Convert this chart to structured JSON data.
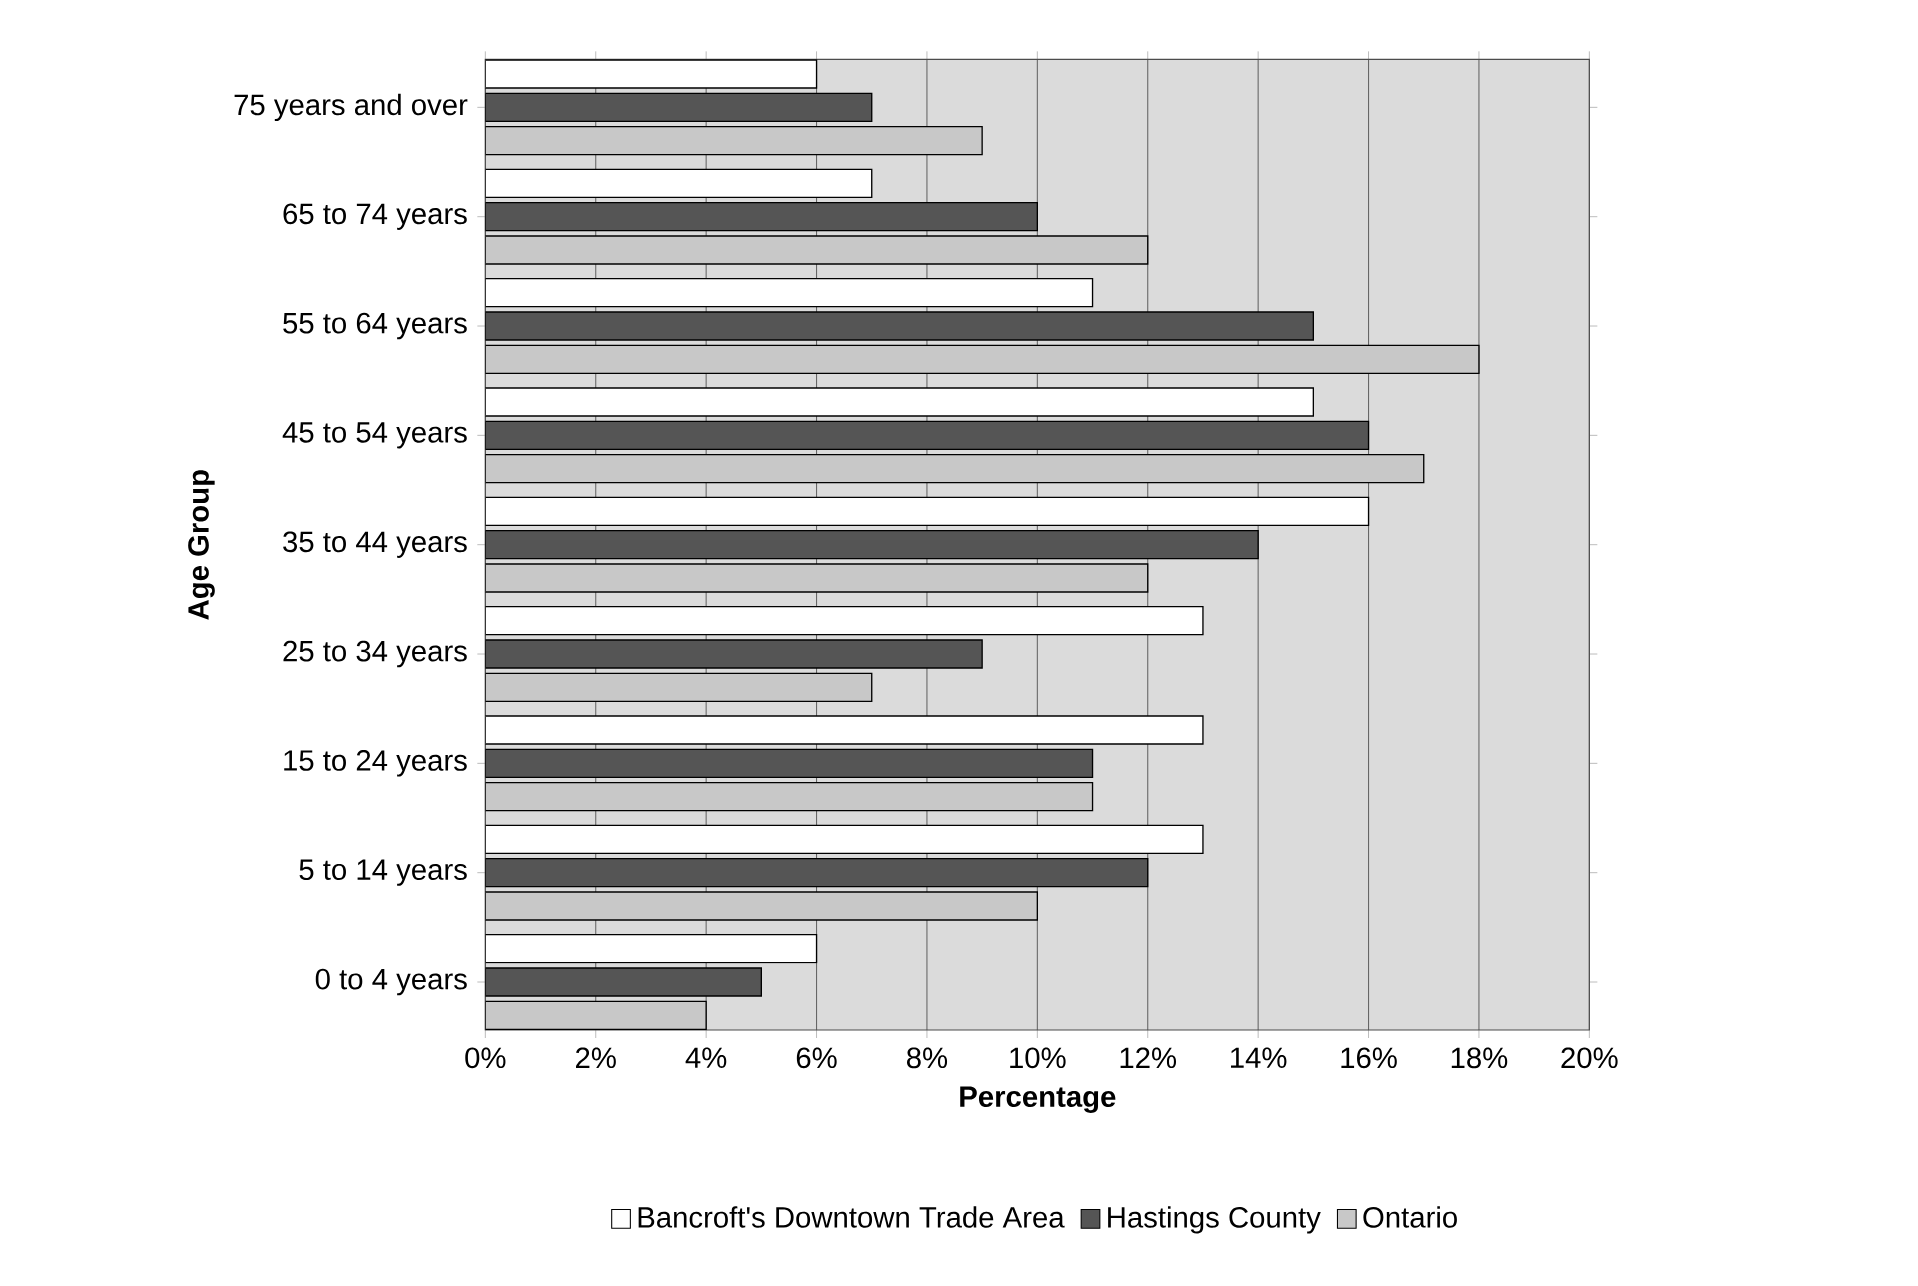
{
  "chart_data": {
    "type": "bar",
    "orientation": "horizontal",
    "xlabel": "Percentage",
    "ylabel": "Age Group",
    "categories": [
      "75 years and over",
      "65 to 74 years",
      "55 to 64 years",
      "45 to 54 years",
      "35 to 44 years",
      "25 to 34 years",
      "15 to 24 years",
      "5 to 14 years",
      "0 to 4 years"
    ],
    "series": [
      {
        "name": "Bancroft's Downtown Trade Area",
        "color": "#ffffff",
        "values": [
          6,
          7,
          11,
          15,
          16,
          13,
          13,
          13,
          6
        ]
      },
      {
        "name": "Hastings County",
        "color": "#555555",
        "values": [
          7,
          10,
          15,
          16,
          14,
          9,
          11,
          12,
          5
        ]
      },
      {
        "name": "Ontario",
        "color": "#c8c8c8",
        "values": [
          9,
          12,
          18,
          17,
          12,
          7,
          11,
          10,
          4
        ]
      }
    ],
    "xlim": [
      0,
      20
    ],
    "xticks": [
      {
        "value": 0,
        "label": "0%"
      },
      {
        "value": 2,
        "label": "2%"
      },
      {
        "value": 4,
        "label": "4%"
      },
      {
        "value": 6,
        "label": "6%"
      },
      {
        "value": 8,
        "label": "8%"
      },
      {
        "value": 10,
        "label": "10%"
      },
      {
        "value": 12,
        "label": "12%"
      },
      {
        "value": 14,
        "label": "14%"
      },
      {
        "value": 16,
        "label": "16%"
      },
      {
        "value": 18,
        "label": "18%"
      },
      {
        "value": 20,
        "label": "20%"
      }
    ],
    "grid": "x",
    "legend": "bottom"
  }
}
